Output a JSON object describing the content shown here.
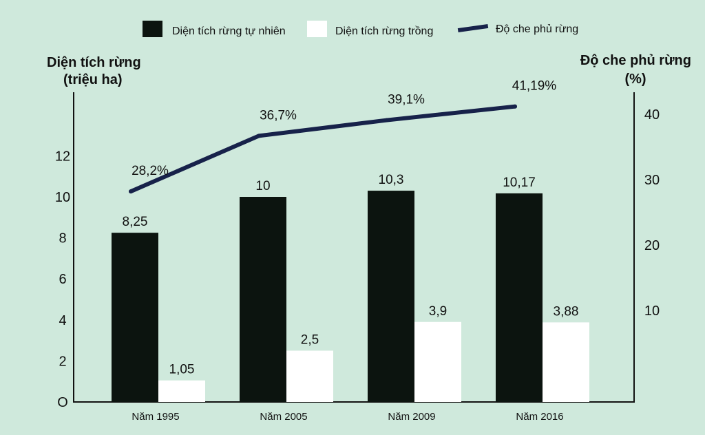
{
  "chart_data": {
    "type": "bar",
    "categories": [
      "Năm 1995",
      "Năm 2005",
      "Năm 2009",
      "Năm 2016"
    ],
    "series": [
      {
        "name": "Diện tích rừng tự nhiên",
        "kind": "bar",
        "axis": "left",
        "color": "#0c140f",
        "values": [
          8.25,
          10,
          10.3,
          10.17
        ],
        "labels": [
          "8,25",
          "10",
          "10,3",
          "10,17"
        ]
      },
      {
        "name": "Diện tích rừng trồng",
        "kind": "bar",
        "axis": "left",
        "color": "#ffffff",
        "values": [
          1.05,
          2.5,
          3.9,
          3.88
        ],
        "labels": [
          "1,05",
          "2,5",
          "3,9",
          "3,88"
        ]
      },
      {
        "name": "Độ che phủ rừng",
        "kind": "line",
        "axis": "right",
        "color": "#17224a",
        "values": [
          28.2,
          36.7,
          39.1,
          41.19
        ],
        "labels": [
          "28,2%",
          "36,7%",
          "39,1%",
          "41,19%"
        ]
      }
    ],
    "y_left": {
      "title_line1": "Diện tích rừng",
      "title_line2": "(triệu ha)",
      "ticks": [
        0,
        2,
        4,
        6,
        8,
        10,
        12
      ],
      "tick_labels": [
        "O",
        "2",
        "4",
        "6",
        "8",
        "10",
        "12"
      ],
      "range": [
        0,
        14
      ]
    },
    "y_right": {
      "title_line1": "Độ che phủ rừng",
      "title_line2": "(%)",
      "ticks": [
        10,
        20,
        30,
        40
      ],
      "tick_labels": [
        "10",
        "20",
        "30",
        "40"
      ],
      "range": [
        0,
        45
      ]
    },
    "legend_position": "top",
    "grid": false
  }
}
